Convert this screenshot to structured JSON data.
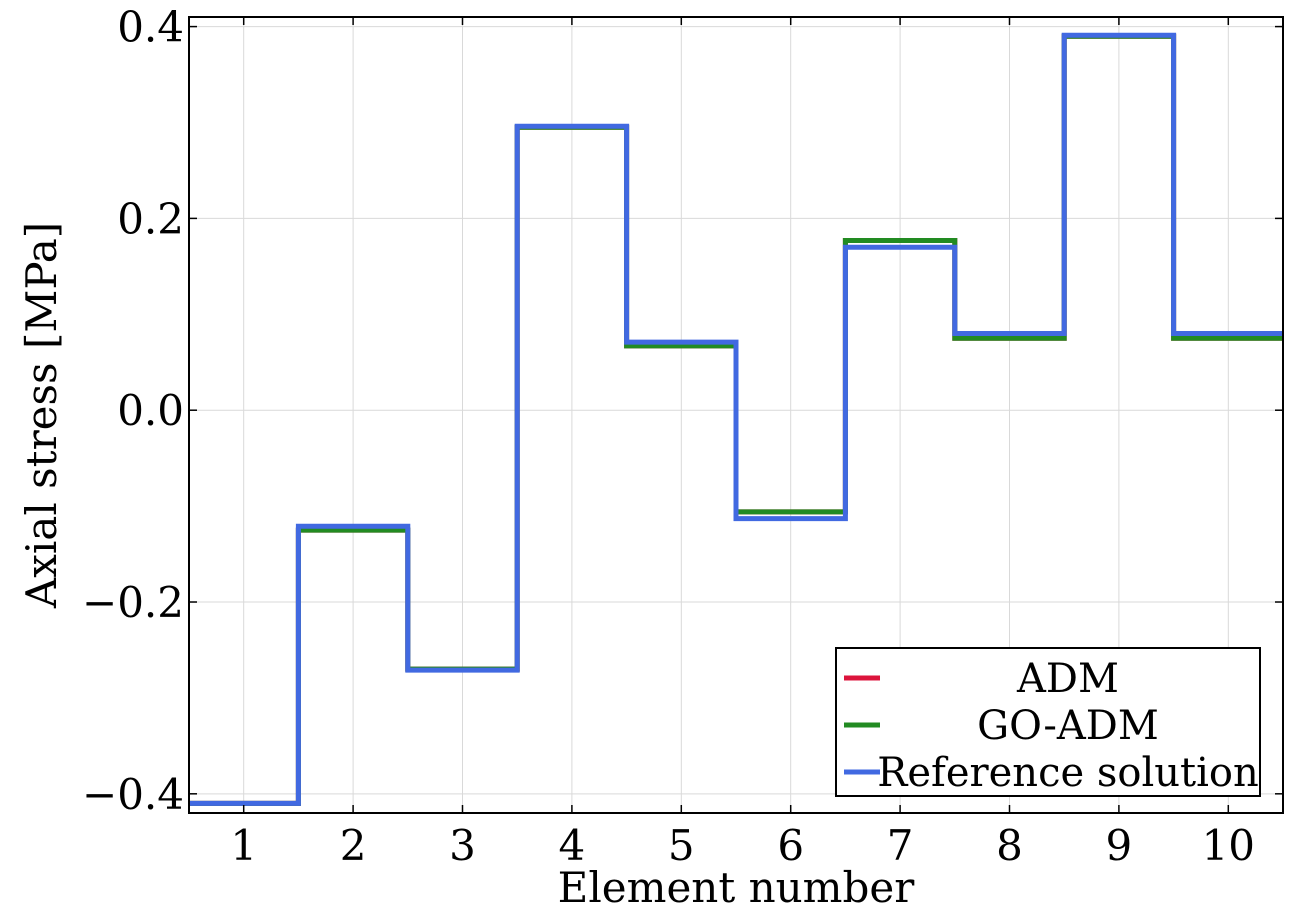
{
  "chart_data": {
    "type": "line",
    "step": true,
    "xlabel": "Element number",
    "ylabel": "Axial stress [MPa]",
    "xlim": [
      0.5,
      10.5
    ],
    "ylim": [
      -0.42,
      0.41
    ],
    "xticks": [
      1,
      2,
      3,
      4,
      5,
      6,
      7,
      8,
      9,
      10
    ],
    "yticks": [
      -0.4,
      -0.2,
      0.0,
      0.2,
      0.4
    ],
    "ytick_labels": [
      "−0.4",
      "−0.2",
      "0.0",
      "0.2",
      "0.4"
    ],
    "xtick_labels": [
      "1",
      "2",
      "3",
      "4",
      "5",
      "6",
      "7",
      "8",
      "9",
      "10"
    ],
    "grid": true,
    "legend_position": "bottom-right",
    "series": [
      {
        "name": "ADM",
        "color": "#dc143c",
        "values": [
          -0.41,
          -0.125,
          -0.27,
          0.295,
          0.067,
          -0.106,
          0.177,
          0.075,
          0.39,
          0.075
        ]
      },
      {
        "name": "GO-ADM",
        "color": "#228b22",
        "values": [
          -0.41,
          -0.125,
          -0.27,
          0.295,
          0.067,
          -0.106,
          0.177,
          0.075,
          0.39,
          0.075
        ]
      },
      {
        "name": "Reference solution",
        "color": "#4169e1",
        "values": [
          -0.41,
          -0.121,
          -0.271,
          0.296,
          0.071,
          -0.113,
          0.17,
          0.08,
          0.391,
          0.08
        ]
      }
    ]
  }
}
